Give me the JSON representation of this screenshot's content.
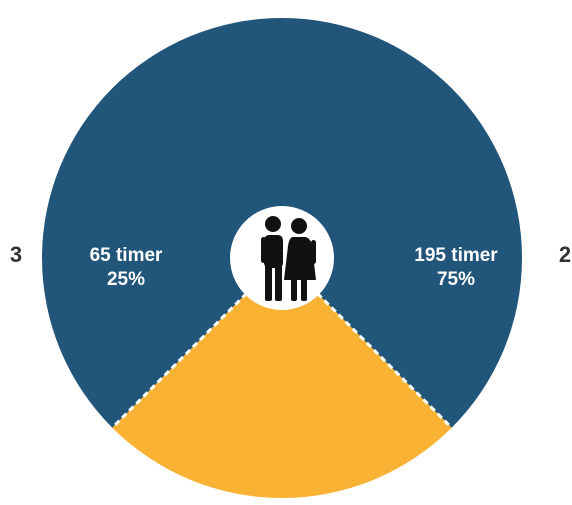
{
  "chart_data": {
    "type": "pie",
    "slices": [
      {
        "category": "2",
        "value": 195,
        "value_label": "195 timer",
        "percent_label": "75%",
        "color": "#21557a"
      },
      {
        "category": "3",
        "value": 65,
        "value_label": "65 timer",
        "percent_label": "25%",
        "color": "#f9b233"
      }
    ],
    "start_angle_deg": 225,
    "direction": "clockwise",
    "separator_style": "white-dashed",
    "center_icon": "couple-icon",
    "center_color": "#ffffff",
    "icon_color": "#111111"
  }
}
